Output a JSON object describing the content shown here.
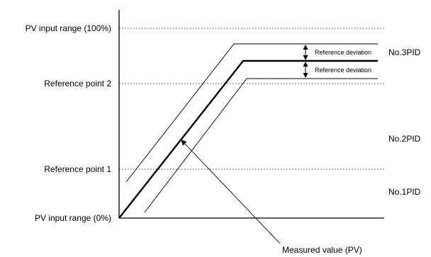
{
  "y_labels": {
    "pv_100": "PV input range (100%)",
    "ref2": "Reference point 2",
    "ref1": "Reference point 1",
    "pv_0": "PV input range  (0%)"
  },
  "zones": {
    "pid3": "No.3PID",
    "pid2": "No.2PID",
    "pid1": "No.1PID"
  },
  "deviation_labels": {
    "upper": "Reference deviation",
    "lower": "Reference deviation"
  },
  "measured_value": "Measured value (PV)"
}
